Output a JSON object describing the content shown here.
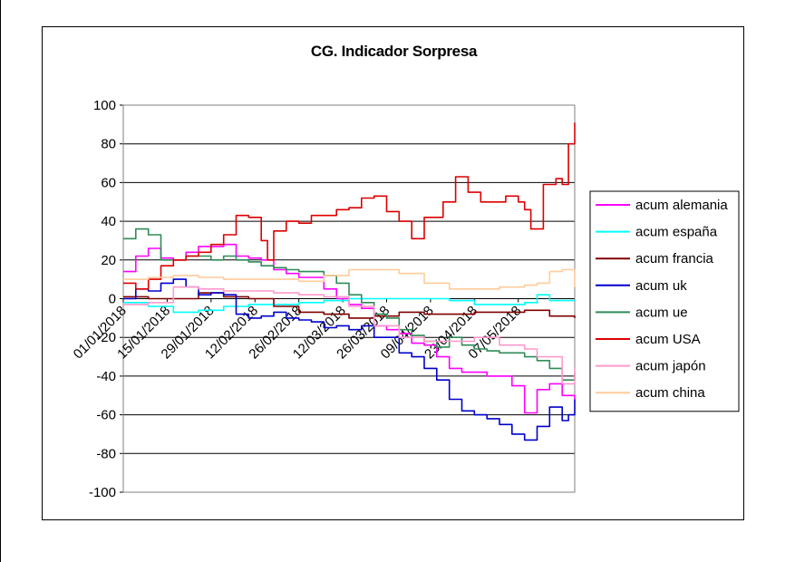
{
  "chart_data": {
    "type": "line",
    "title": "CG. Indicador Sorpresa",
    "xlabel": "",
    "ylabel": "",
    "ylim": [
      -100,
      100
    ],
    "yticks": [
      "100",
      "80",
      "60",
      "40",
      "20",
      "0",
      "-20",
      "-40",
      "-60",
      "-80",
      "-100"
    ],
    "xlim": [
      "2018-01-01",
      "2018-05-25"
    ],
    "xticks": [
      "01/01/2018",
      "15/01/2018",
      "29/01/2018",
      "12/02/2018",
      "26/02/2018",
      "12/03/2018",
      "26/03/2018",
      "09/04/2018",
      "23/04/2018",
      "07/05/2018"
    ],
    "grid": "horizontal",
    "legend_position": "right",
    "series": [
      {
        "name": "acum alemania",
        "color": "#ff00ff",
        "x": [
          "2018-01-01",
          "2018-01-05",
          "2018-01-09",
          "2018-01-13",
          "2018-01-17",
          "2018-01-21",
          "2018-01-25",
          "2018-01-29",
          "2018-02-02",
          "2018-02-06",
          "2018-02-10",
          "2018-02-14",
          "2018-02-18",
          "2018-02-22",
          "2018-02-26",
          "2018-03-02",
          "2018-03-06",
          "2018-03-10",
          "2018-03-14",
          "2018-03-18",
          "2018-03-22",
          "2018-03-26",
          "2018-03-30",
          "2018-04-03",
          "2018-04-07",
          "2018-04-11",
          "2018-04-15",
          "2018-04-19",
          "2018-04-23",
          "2018-04-27",
          "2018-05-01",
          "2018-05-05",
          "2018-05-09",
          "2018-05-13",
          "2018-05-17",
          "2018-05-21",
          "2018-05-25"
        ],
        "y": [
          14,
          22,
          26,
          21,
          20,
          24,
          27,
          27,
          28,
          22,
          21,
          20,
          15,
          13,
          11,
          11,
          5,
          0,
          -3,
          -5,
          -14,
          -16,
          -18,
          -23,
          -24,
          -30,
          -36,
          -38,
          -38,
          -40,
          -40,
          -45,
          -59,
          -47,
          -44,
          -50,
          -52
        ]
      },
      {
        "name": "acum españa",
        "color": "#00ffff",
        "x": [
          "2018-01-01",
          "2018-01-09",
          "2018-01-17",
          "2018-01-25",
          "2018-02-02",
          "2018-02-10",
          "2018-02-18",
          "2018-02-26",
          "2018-03-06",
          "2018-03-14",
          "2018-03-22",
          "2018-03-30",
          "2018-04-07",
          "2018-04-15",
          "2018-04-23",
          "2018-05-01",
          "2018-05-09",
          "2018-05-13",
          "2018-05-17",
          "2018-05-25"
        ],
        "y": [
          -2,
          -4,
          -7,
          -6,
          -4,
          -3,
          -3,
          -2,
          -1,
          0,
          0,
          0,
          0,
          -1,
          -3,
          -3,
          -2,
          2,
          -1,
          -1
        ]
      },
      {
        "name": "acum francia",
        "color": "#800000",
        "x": [
          "2018-01-01",
          "2018-01-09",
          "2018-01-17",
          "2018-01-25",
          "2018-02-02",
          "2018-02-10",
          "2018-02-18",
          "2018-02-26",
          "2018-03-06",
          "2018-03-14",
          "2018-03-22",
          "2018-03-30",
          "2018-04-07",
          "2018-04-15",
          "2018-04-23",
          "2018-05-01",
          "2018-05-09",
          "2018-05-17",
          "2018-05-25"
        ],
        "y": [
          1,
          0,
          0,
          3,
          1,
          0,
          -4,
          -7,
          -8,
          -10,
          -9,
          -7,
          -8,
          -8,
          -7,
          -7,
          -6,
          -9,
          -10
        ]
      },
      {
        "name": "acum uk",
        "color": "#0000cc",
        "x": [
          "2018-01-01",
          "2018-01-05",
          "2018-01-09",
          "2018-01-13",
          "2018-01-17",
          "2018-01-21",
          "2018-01-25",
          "2018-01-29",
          "2018-02-02",
          "2018-02-06",
          "2018-02-10",
          "2018-02-14",
          "2018-02-18",
          "2018-02-22",
          "2018-02-26",
          "2018-03-02",
          "2018-03-06",
          "2018-03-10",
          "2018-03-14",
          "2018-03-18",
          "2018-03-22",
          "2018-03-26",
          "2018-03-30",
          "2018-04-03",
          "2018-04-07",
          "2018-04-11",
          "2018-04-15",
          "2018-04-19",
          "2018-04-23",
          "2018-04-27",
          "2018-05-01",
          "2018-05-05",
          "2018-05-09",
          "2018-05-13",
          "2018-05-17",
          "2018-05-21",
          "2018-05-23",
          "2018-05-25"
        ],
        "y": [
          0,
          5,
          4,
          8,
          10,
          6,
          2,
          3,
          2,
          -8,
          -10,
          -9,
          -7,
          -10,
          -11,
          -12,
          -15,
          -14,
          -16,
          -14,
          -20,
          -20,
          -28,
          -30,
          -36,
          -42,
          -52,
          -58,
          -60,
          -62,
          -65,
          -70,
          -73,
          -66,
          -56,
          -63,
          -60,
          -52
        ]
      },
      {
        "name": "acum ue",
        "color": "#2e8b57",
        "x": [
          "2018-01-01",
          "2018-01-05",
          "2018-01-09",
          "2018-01-13",
          "2018-01-17",
          "2018-01-21",
          "2018-01-25",
          "2018-01-29",
          "2018-02-02",
          "2018-02-06",
          "2018-02-10",
          "2018-02-14",
          "2018-02-18",
          "2018-02-22",
          "2018-02-26",
          "2018-03-02",
          "2018-03-06",
          "2018-03-10",
          "2018-03-14",
          "2018-03-18",
          "2018-03-22",
          "2018-03-26",
          "2018-03-30",
          "2018-04-03",
          "2018-04-07",
          "2018-04-11",
          "2018-04-15",
          "2018-04-19",
          "2018-04-23",
          "2018-04-27",
          "2018-05-01",
          "2018-05-05",
          "2018-05-09",
          "2018-05-13",
          "2018-05-17",
          "2018-05-21",
          "2018-05-25"
        ],
        "y": [
          31,
          36,
          33,
          20,
          20,
          22,
          22,
          20,
          22,
          20,
          19,
          17,
          16,
          15,
          14,
          14,
          12,
          8,
          2,
          -2,
          -8,
          -10,
          -16,
          -19,
          -22,
          -25,
          -20,
          -24,
          -26,
          -27,
          -28,
          -28,
          -30,
          -32,
          -36,
          -42,
          -38
        ]
      },
      {
        "name": "acum USA",
        "color": "#dd0000",
        "x": [
          "2018-01-01",
          "2018-01-05",
          "2018-01-09",
          "2018-01-13",
          "2018-01-17",
          "2018-01-21",
          "2018-01-25",
          "2018-01-29",
          "2018-02-02",
          "2018-02-06",
          "2018-02-10",
          "2018-02-14",
          "2018-02-16",
          "2018-02-18",
          "2018-02-22",
          "2018-02-26",
          "2018-03-02",
          "2018-03-06",
          "2018-03-10",
          "2018-03-14",
          "2018-03-18",
          "2018-03-22",
          "2018-03-26",
          "2018-03-30",
          "2018-04-03",
          "2018-04-07",
          "2018-04-11",
          "2018-04-13",
          "2018-04-17",
          "2018-04-21",
          "2018-04-25",
          "2018-04-29",
          "2018-05-03",
          "2018-05-07",
          "2018-05-09",
          "2018-05-11",
          "2018-05-15",
          "2018-05-19",
          "2018-05-21",
          "2018-05-23",
          "2018-05-25"
        ],
        "y": [
          8,
          5,
          10,
          17,
          20,
          22,
          24,
          28,
          33,
          43,
          42,
          30,
          20,
          35,
          40,
          39,
          43,
          43,
          46,
          47,
          52,
          53,
          45,
          40,
          31,
          42,
          42,
          50,
          63,
          55,
          50,
          50,
          53,
          50,
          46,
          36,
          59,
          62,
          59,
          80,
          91
        ]
      },
      {
        "name": "acum japón",
        "color": "#ff99cc",
        "x": [
          "2018-01-01",
          "2018-01-09",
          "2018-01-17",
          "2018-01-25",
          "2018-02-02",
          "2018-02-10",
          "2018-02-18",
          "2018-02-26",
          "2018-03-06",
          "2018-03-14",
          "2018-03-22",
          "2018-03-30",
          "2018-04-07",
          "2018-04-15",
          "2018-04-23",
          "2018-05-01",
          "2018-05-09",
          "2018-05-13",
          "2018-05-17",
          "2018-05-21",
          "2018-05-25"
        ],
        "y": [
          -3,
          -2,
          6,
          5,
          4,
          4,
          3,
          2,
          1,
          -4,
          -14,
          -20,
          -22,
          -22,
          -20,
          -24,
          -26,
          -30,
          -30,
          -44,
          -36
        ]
      },
      {
        "name": "acum china",
        "color": "#ffcc99",
        "x": [
          "2018-01-01",
          "2018-01-09",
          "2018-01-17",
          "2018-01-25",
          "2018-02-02",
          "2018-02-10",
          "2018-02-18",
          "2018-02-26",
          "2018-03-06",
          "2018-03-14",
          "2018-03-22",
          "2018-03-30",
          "2018-04-07",
          "2018-04-15",
          "2018-04-23",
          "2018-05-01",
          "2018-05-09",
          "2018-05-13",
          "2018-05-17",
          "2018-05-21",
          "2018-05-25"
        ],
        "y": [
          10,
          11,
          12,
          11,
          10,
          10,
          10,
          9,
          12,
          15,
          15,
          13,
          8,
          5,
          5,
          6,
          7,
          8,
          14,
          15,
          6
        ]
      }
    ]
  }
}
